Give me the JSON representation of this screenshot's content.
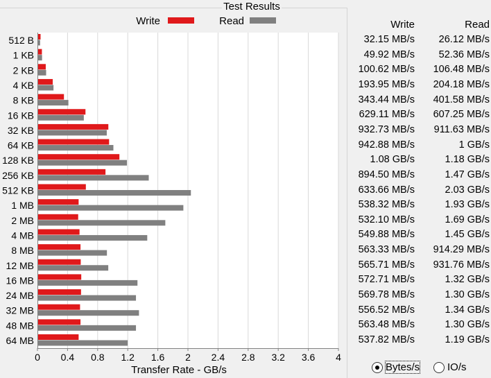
{
  "title": "Test Results",
  "legend": {
    "write": "Write",
    "read": "Read"
  },
  "colors": {
    "write": "#e0191b",
    "read": "#808080",
    "grid": "#d8d8d8"
  },
  "table": {
    "write_header": "Write",
    "read_header": "Read",
    "rows": [
      {
        "write": "32.15 MB/s",
        "read": "26.12 MB/s"
      },
      {
        "write": "49.92 MB/s",
        "read": "52.36 MB/s"
      },
      {
        "write": "100.62 MB/s",
        "read": "106.48 MB/s"
      },
      {
        "write": "193.95 MB/s",
        "read": "204.18 MB/s"
      },
      {
        "write": "343.44 MB/s",
        "read": "401.58 MB/s"
      },
      {
        "write": "629.11 MB/s",
        "read": "607.25 MB/s"
      },
      {
        "write": "932.73 MB/s",
        "read": "911.63 MB/s"
      },
      {
        "write": "942.88 MB/s",
        "read": "1 GB/s"
      },
      {
        "write": "1.08 GB/s",
        "read": "1.18 GB/s"
      },
      {
        "write": "894.50 MB/s",
        "read": "1.47 GB/s"
      },
      {
        "write": "633.66 MB/s",
        "read": "2.03 GB/s"
      },
      {
        "write": "538.32 MB/s",
        "read": "1.93 GB/s"
      },
      {
        "write": "532.10 MB/s",
        "read": "1.69 GB/s"
      },
      {
        "write": "549.88 MB/s",
        "read": "1.45 GB/s"
      },
      {
        "write": "563.33 MB/s",
        "read": "914.29 MB/s"
      },
      {
        "write": "565.71 MB/s",
        "read": "931.76 MB/s"
      },
      {
        "write": "572.71 MB/s",
        "read": "1.32 GB/s"
      },
      {
        "write": "569.78 MB/s",
        "read": "1.30 GB/s"
      },
      {
        "write": "556.52 MB/s",
        "read": "1.34 GB/s"
      },
      {
        "write": "563.48 MB/s",
        "read": "1.30 GB/s"
      },
      {
        "write": "537.82 MB/s",
        "read": "1.19 GB/s"
      }
    ]
  },
  "units": {
    "bytes_label": "Bytes/s",
    "io_label": "IO/s",
    "selected": "bytes"
  },
  "chart_data": {
    "type": "bar",
    "orientation": "horizontal",
    "title": "Test Results",
    "xlabel": "Transfer Rate - GB/s",
    "ylabel": "",
    "xlim": [
      0,
      4
    ],
    "x_ticks": [
      "0",
      "0.4",
      "0.8",
      "1.2",
      "1.6",
      "2",
      "2.4",
      "2.8",
      "3.2",
      "3.6",
      "4"
    ],
    "grid": true,
    "legend_position": "top",
    "categories": [
      "512 B",
      "1 KB",
      "2 KB",
      "4 KB",
      "8 KB",
      "16 KB",
      "32 KB",
      "64 KB",
      "128 KB",
      "256 KB",
      "512 KB",
      "1 MB",
      "2 MB",
      "4 MB",
      "8 MB",
      "12 MB",
      "16 MB",
      "24 MB",
      "32 MB",
      "48 MB",
      "64 MB"
    ],
    "series": [
      {
        "name": "Write",
        "values": [
          0.032,
          0.05,
          0.101,
          0.194,
          0.343,
          0.629,
          0.933,
          0.943,
          1.08,
          0.895,
          0.634,
          0.538,
          0.532,
          0.55,
          0.563,
          0.566,
          0.573,
          0.57,
          0.557,
          0.563,
          0.538
        ]
      },
      {
        "name": "Read",
        "values": [
          0.026,
          0.052,
          0.106,
          0.204,
          0.402,
          0.607,
          0.912,
          1.0,
          1.18,
          1.47,
          2.03,
          1.93,
          1.69,
          1.45,
          0.914,
          0.932,
          1.32,
          1.3,
          1.34,
          1.3,
          1.19
        ]
      }
    ]
  }
}
